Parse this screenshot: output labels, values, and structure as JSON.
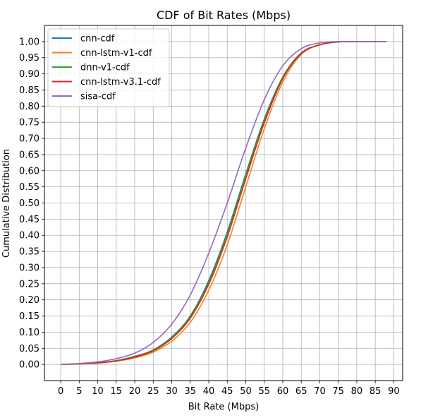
{
  "chart_data": {
    "type": "line",
    "title": "CDF of Bit Rates (Mbps)",
    "xlabel": "Bit Rate (Mbps)",
    "ylabel": "Cumulative Distribution",
    "xlim": [
      -4.4,
      92.4
    ],
    "ylim": [
      -0.05,
      1.05
    ],
    "xticks": [
      0,
      5,
      10,
      15,
      20,
      25,
      30,
      35,
      40,
      45,
      50,
      55,
      60,
      65,
      70,
      75,
      80,
      85,
      90
    ],
    "xtick_labels": [
      "0",
      "5",
      "10",
      "15",
      "20",
      "25",
      "30",
      "35",
      "40",
      "45",
      "50",
      "55",
      "60",
      "65",
      "70",
      "75",
      "80",
      "85",
      "90"
    ],
    "yticks": [
      0,
      0.05,
      0.1,
      0.15,
      0.2,
      0.25,
      0.3,
      0.35,
      0.4,
      0.45,
      0.5,
      0.55,
      0.6,
      0.65,
      0.7,
      0.75,
      0.8,
      0.85,
      0.9,
      0.95,
      1.0
    ],
    "ytick_labels": [
      "0.00",
      "0.05",
      "0.10",
      "0.15",
      "0.20",
      "0.25",
      "0.30",
      "0.35",
      "0.40",
      "0.45",
      "0.50",
      "0.55",
      "0.60",
      "0.65",
      "0.70",
      "0.75",
      "0.80",
      "0.85",
      "0.90",
      "0.95",
      "1.00"
    ],
    "grid": true,
    "legend_position": "top-left",
    "series": [
      {
        "name": "cnn-cdf",
        "color": "#1f77b4",
        "x": [
          0,
          5,
          10,
          15,
          20,
          25,
          30,
          35,
          40,
          45,
          50,
          55,
          60,
          65,
          70,
          75,
          80,
          88
        ],
        "y": [
          0.0,
          0.002,
          0.005,
          0.012,
          0.025,
          0.045,
          0.085,
          0.15,
          0.26,
          0.41,
          0.59,
          0.76,
          0.89,
          0.965,
          0.99,
          0.999,
          1.0,
          1.0
        ]
      },
      {
        "name": "cnn-lstm-v1-cdf",
        "color": "#ff7f0e",
        "x": [
          0,
          5,
          10,
          15,
          20,
          25,
          30,
          35,
          40,
          45,
          50,
          55,
          60,
          65,
          70,
          75,
          80,
          88
        ],
        "y": [
          0.0,
          0.001,
          0.004,
          0.01,
          0.02,
          0.038,
          0.072,
          0.13,
          0.23,
          0.37,
          0.55,
          0.73,
          0.875,
          0.96,
          0.99,
          0.999,
          1.0,
          1.0
        ]
      },
      {
        "name": "dnn-v1-cdf",
        "color": "#2ca02c",
        "x": [
          0,
          5,
          10,
          15,
          20,
          25,
          30,
          35,
          40,
          45,
          50,
          55,
          60,
          65,
          70,
          75,
          80,
          88
        ],
        "y": [
          0.0,
          0.002,
          0.005,
          0.011,
          0.024,
          0.044,
          0.083,
          0.148,
          0.255,
          0.405,
          0.585,
          0.755,
          0.888,
          0.964,
          0.99,
          0.999,
          1.0,
          1.0
        ]
      },
      {
        "name": "cnn-lstm-v3.1-cdf",
        "color": "#d62728",
        "x": [
          0,
          5,
          10,
          15,
          20,
          25,
          30,
          35,
          40,
          45,
          50,
          55,
          60,
          65,
          70,
          75,
          80,
          88
        ],
        "y": [
          0.0,
          0.002,
          0.005,
          0.011,
          0.023,
          0.042,
          0.08,
          0.143,
          0.248,
          0.395,
          0.575,
          0.748,
          0.885,
          0.963,
          0.99,
          0.999,
          1.0,
          1.0
        ]
      },
      {
        "name": "sisa-cdf",
        "color": "#9467bd",
        "x": [
          0,
          5,
          10,
          15,
          20,
          25,
          30,
          35,
          40,
          45,
          50,
          55,
          60,
          65,
          70,
          75,
          80,
          88
        ],
        "y": [
          0.0,
          0.003,
          0.008,
          0.018,
          0.035,
          0.068,
          0.125,
          0.215,
          0.345,
          0.5,
          0.67,
          0.82,
          0.925,
          0.978,
          0.996,
          1.0,
          1.0,
          1.0
        ]
      }
    ]
  }
}
